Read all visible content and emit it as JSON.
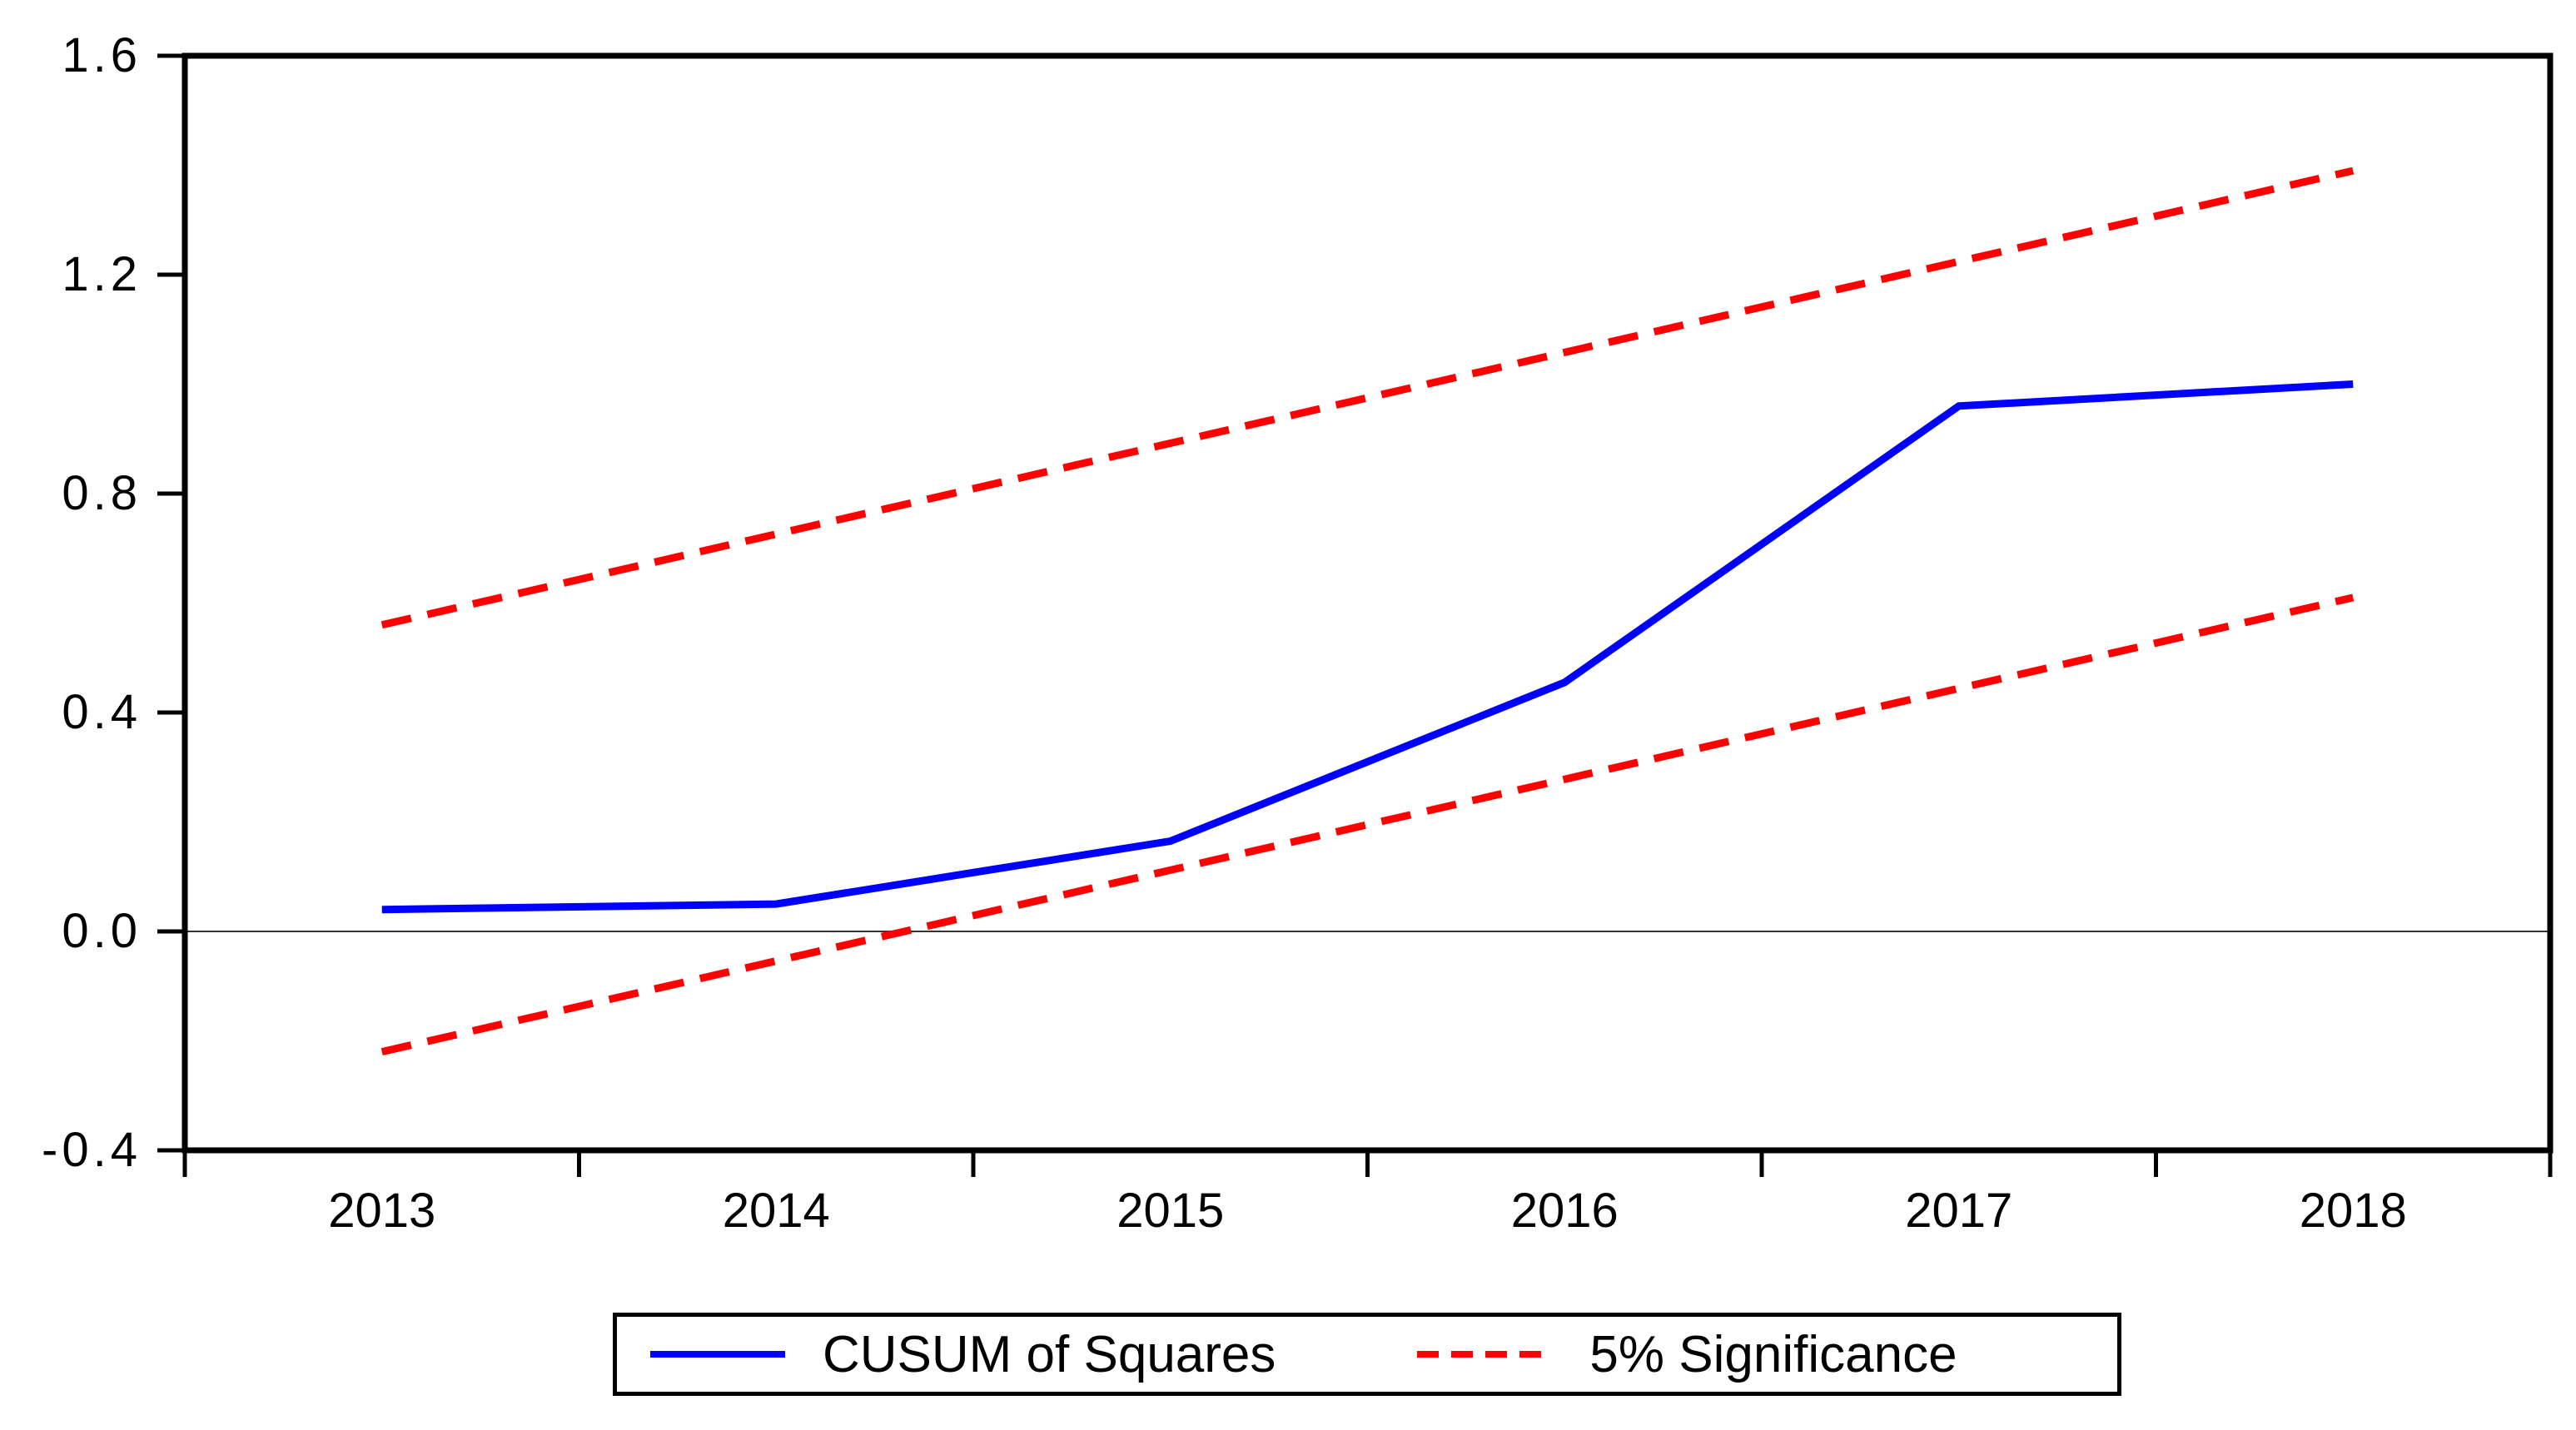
{
  "chart_data": {
    "type": "line",
    "title": "",
    "xlabel": "",
    "ylabel": "",
    "x": [
      2013,
      2014,
      2015,
      2016,
      2017,
      2018
    ],
    "xticklabels": [
      "2013",
      "2014",
      "2015",
      "2016",
      "2017",
      "2018"
    ],
    "yticks": [
      1.6,
      1.2,
      0.8,
      0.4,
      0.0,
      -0.4
    ],
    "yticklabels": [
      "1.6",
      "1.2",
      "0.8",
      "0.4",
      "0.0",
      "-0.4"
    ],
    "ylim": [
      -0.4,
      1.6
    ],
    "grid": false,
    "zero_line": true,
    "legend_position": "bottom",
    "series": [
      {
        "name": "CUSUM of Squares",
        "color": "#0000ff",
        "style": "solid",
        "values": [
          0.04,
          0.05,
          0.165,
          0.455,
          0.96,
          1.0
        ]
      },
      {
        "name": "5% Significance (upper bound)",
        "color": "#ff0000",
        "style": "dashed",
        "values": [
          0.56,
          0.726,
          0.892,
          1.058,
          1.224,
          1.39
        ]
      },
      {
        "name": "5% Significance (lower bound)",
        "color": "#ff0000",
        "style": "dashed",
        "values": [
          -0.22,
          -0.054,
          0.112,
          0.278,
          0.444,
          0.61
        ]
      }
    ]
  },
  "legend": {
    "items": [
      {
        "label": "CUSUM of Squares",
        "color": "#0000ff",
        "style": "solid"
      },
      {
        "label": "5% Significance",
        "color": "#ff0000",
        "style": "dashed"
      }
    ]
  },
  "colors": {
    "cusum_line": "#0000ff",
    "significance_line": "#ff0000",
    "axis": "#000000",
    "zero_line": "#333333",
    "background": "#ffffff"
  }
}
